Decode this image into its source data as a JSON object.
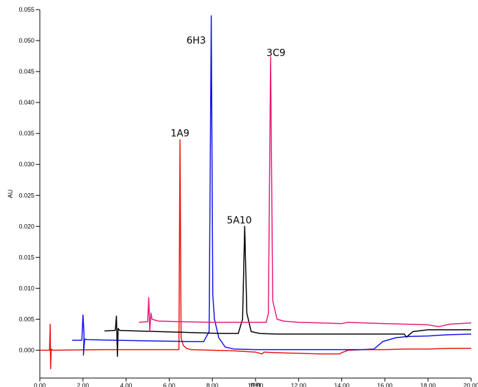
{
  "chart_data": {
    "type": "line",
    "title": "",
    "xlabel": "min",
    "ylabel": "AU",
    "xlim": [
      0,
      20
    ],
    "ylim": [
      -0.0045,
      0.055
    ],
    "x_ticks": [
      "0.00",
      "2.00",
      "4.00",
      "6.00",
      "8.00",
      "10.00",
      "12.00",
      "14.00",
      "16.00",
      "18.00",
      "20.00"
    ],
    "y_ticks": [
      "0.000",
      "0.005",
      "0.010",
      "0.015",
      "0.020",
      "0.025",
      "0.030",
      "0.035",
      "0.040",
      "0.045",
      "0.050",
      "0.055"
    ],
    "grid": false,
    "legend": "none",
    "series": [
      {
        "color": "#e8140f",
        "points": [
          [
            0,
            0.0
          ],
          [
            0.45,
            0.0
          ],
          [
            0.48,
            0.0042
          ],
          [
            0.5,
            -0.003
          ],
          [
            0.53,
            0.0002
          ],
          [
            0.6,
            0.0
          ],
          [
            3,
            0.0001
          ],
          [
            5,
            0.0001
          ],
          [
            6.0,
            0.0001
          ],
          [
            6.45,
            0.0001
          ],
          [
            6.5,
            0.034
          ],
          [
            6.55,
            0.002
          ],
          [
            6.65,
            0.0008
          ],
          [
            6.8,
            0.0003
          ],
          [
            7.0,
            0.0001
          ],
          [
            8,
            0.0
          ],
          [
            9,
            -0.0001
          ],
          [
            10,
            -0.0003
          ],
          [
            10.3,
            -0.0006
          ],
          [
            10.4,
            -0.0003
          ],
          [
            11,
            -0.0004
          ],
          [
            12,
            -0.0005
          ],
          [
            13,
            -0.0006
          ],
          [
            13.9,
            -0.0006
          ],
          [
            14.0,
            -0.0004
          ],
          [
            14.3,
            0.0
          ],
          [
            15,
            0.0001
          ],
          [
            16,
            0.0001
          ],
          [
            17,
            0.0002
          ],
          [
            18,
            0.0002
          ],
          [
            19,
            0.0003
          ],
          [
            20,
            0.0003
          ]
        ]
      },
      {
        "color": "#1010e8",
        "points": [
          [
            1.5,
            0.0016
          ],
          [
            1.95,
            0.0016
          ],
          [
            2.0,
            0.0057
          ],
          [
            2.05,
            0.0025
          ],
          [
            2.02,
            -0.0008
          ],
          [
            2.08,
            0.0018
          ],
          [
            2.2,
            0.0017
          ],
          [
            3.5,
            0.0016
          ],
          [
            5,
            0.0015
          ],
          [
            7,
            0.0014
          ],
          [
            7.6,
            0.0014
          ],
          [
            7.85,
            0.003
          ],
          [
            7.95,
            0.054
          ],
          [
            8.02,
            0.009
          ],
          [
            8.1,
            0.005
          ],
          [
            8.3,
            0.002
          ],
          [
            8.6,
            0.0005
          ],
          [
            9,
            0.0002
          ],
          [
            10,
            0.0001
          ],
          [
            11,
            0.0001
          ],
          [
            12,
            0.0001
          ],
          [
            13,
            0.0001
          ],
          [
            14,
            0.0001
          ],
          [
            15,
            0.0001
          ],
          [
            15.5,
            0.0002
          ],
          [
            15.9,
            0.0014
          ],
          [
            16.5,
            0.002
          ],
          [
            17,
            0.0022
          ],
          [
            18,
            0.0023
          ],
          [
            19,
            0.0025
          ],
          [
            20,
            0.0026
          ]
        ]
      },
      {
        "color": "#000000",
        "points": [
          [
            3.0,
            0.0031
          ],
          [
            3.5,
            0.0032
          ],
          [
            3.55,
            0.0055
          ],
          [
            3.6,
            -0.001
          ],
          [
            3.63,
            0.0035
          ],
          [
            3.7,
            0.0032
          ],
          [
            4.5,
            0.0031
          ],
          [
            5.5,
            0.003
          ],
          [
            6.5,
            0.0029
          ],
          [
            7.5,
            0.0028
          ],
          [
            8.5,
            0.0027
          ],
          [
            9.2,
            0.0027
          ],
          [
            9.4,
            0.005
          ],
          [
            9.5,
            0.02
          ],
          [
            9.6,
            0.006
          ],
          [
            9.8,
            0.003
          ],
          [
            10.2,
            0.0027
          ],
          [
            11,
            0.0026
          ],
          [
            12,
            0.0026
          ],
          [
            13,
            0.0026
          ],
          [
            14,
            0.0026
          ],
          [
            15,
            0.0026
          ],
          [
            16,
            0.0026
          ],
          [
            16.9,
            0.0026
          ],
          [
            17.0,
            0.0021
          ],
          [
            17.3,
            0.003
          ],
          [
            18,
            0.0033
          ],
          [
            19,
            0.0033
          ],
          [
            20,
            0.0033
          ]
        ]
      },
      {
        "color": "#e8197a",
        "points": [
          [
            4.6,
            0.0045
          ],
          [
            5.0,
            0.0046
          ],
          [
            5.05,
            0.0085
          ],
          [
            5.1,
            0.003
          ],
          [
            5.15,
            0.006
          ],
          [
            5.2,
            0.005
          ],
          [
            5.5,
            0.0047
          ],
          [
            6.5,
            0.0046
          ],
          [
            8,
            0.0045
          ],
          [
            9.5,
            0.0045
          ],
          [
            10.5,
            0.0045
          ],
          [
            10.6,
            0.006
          ],
          [
            10.7,
            0.0474
          ],
          [
            10.8,
            0.008
          ],
          [
            10.9,
            0.0065
          ],
          [
            11.0,
            0.005
          ],
          [
            11.3,
            0.0047
          ],
          [
            12,
            0.0045
          ],
          [
            13,
            0.0044
          ],
          [
            14,
            0.0043
          ],
          [
            14.3,
            0.0045
          ],
          [
            15,
            0.0044
          ],
          [
            16,
            0.0043
          ],
          [
            17,
            0.0042
          ],
          [
            18,
            0.0041
          ],
          [
            18.5,
            0.0038
          ],
          [
            19,
            0.0042
          ],
          [
            20,
            0.0044
          ]
        ]
      }
    ],
    "annotations": [
      {
        "text": "1A9",
        "x": 6.5,
        "y": 0.0345
      },
      {
        "text": "6H3",
        "x": 7.25,
        "y": 0.0495
      },
      {
        "text": "3C9",
        "x": 10.95,
        "y": 0.0475
      },
      {
        "text": "5A10",
        "x": 9.25,
        "y": 0.0205
      }
    ]
  }
}
